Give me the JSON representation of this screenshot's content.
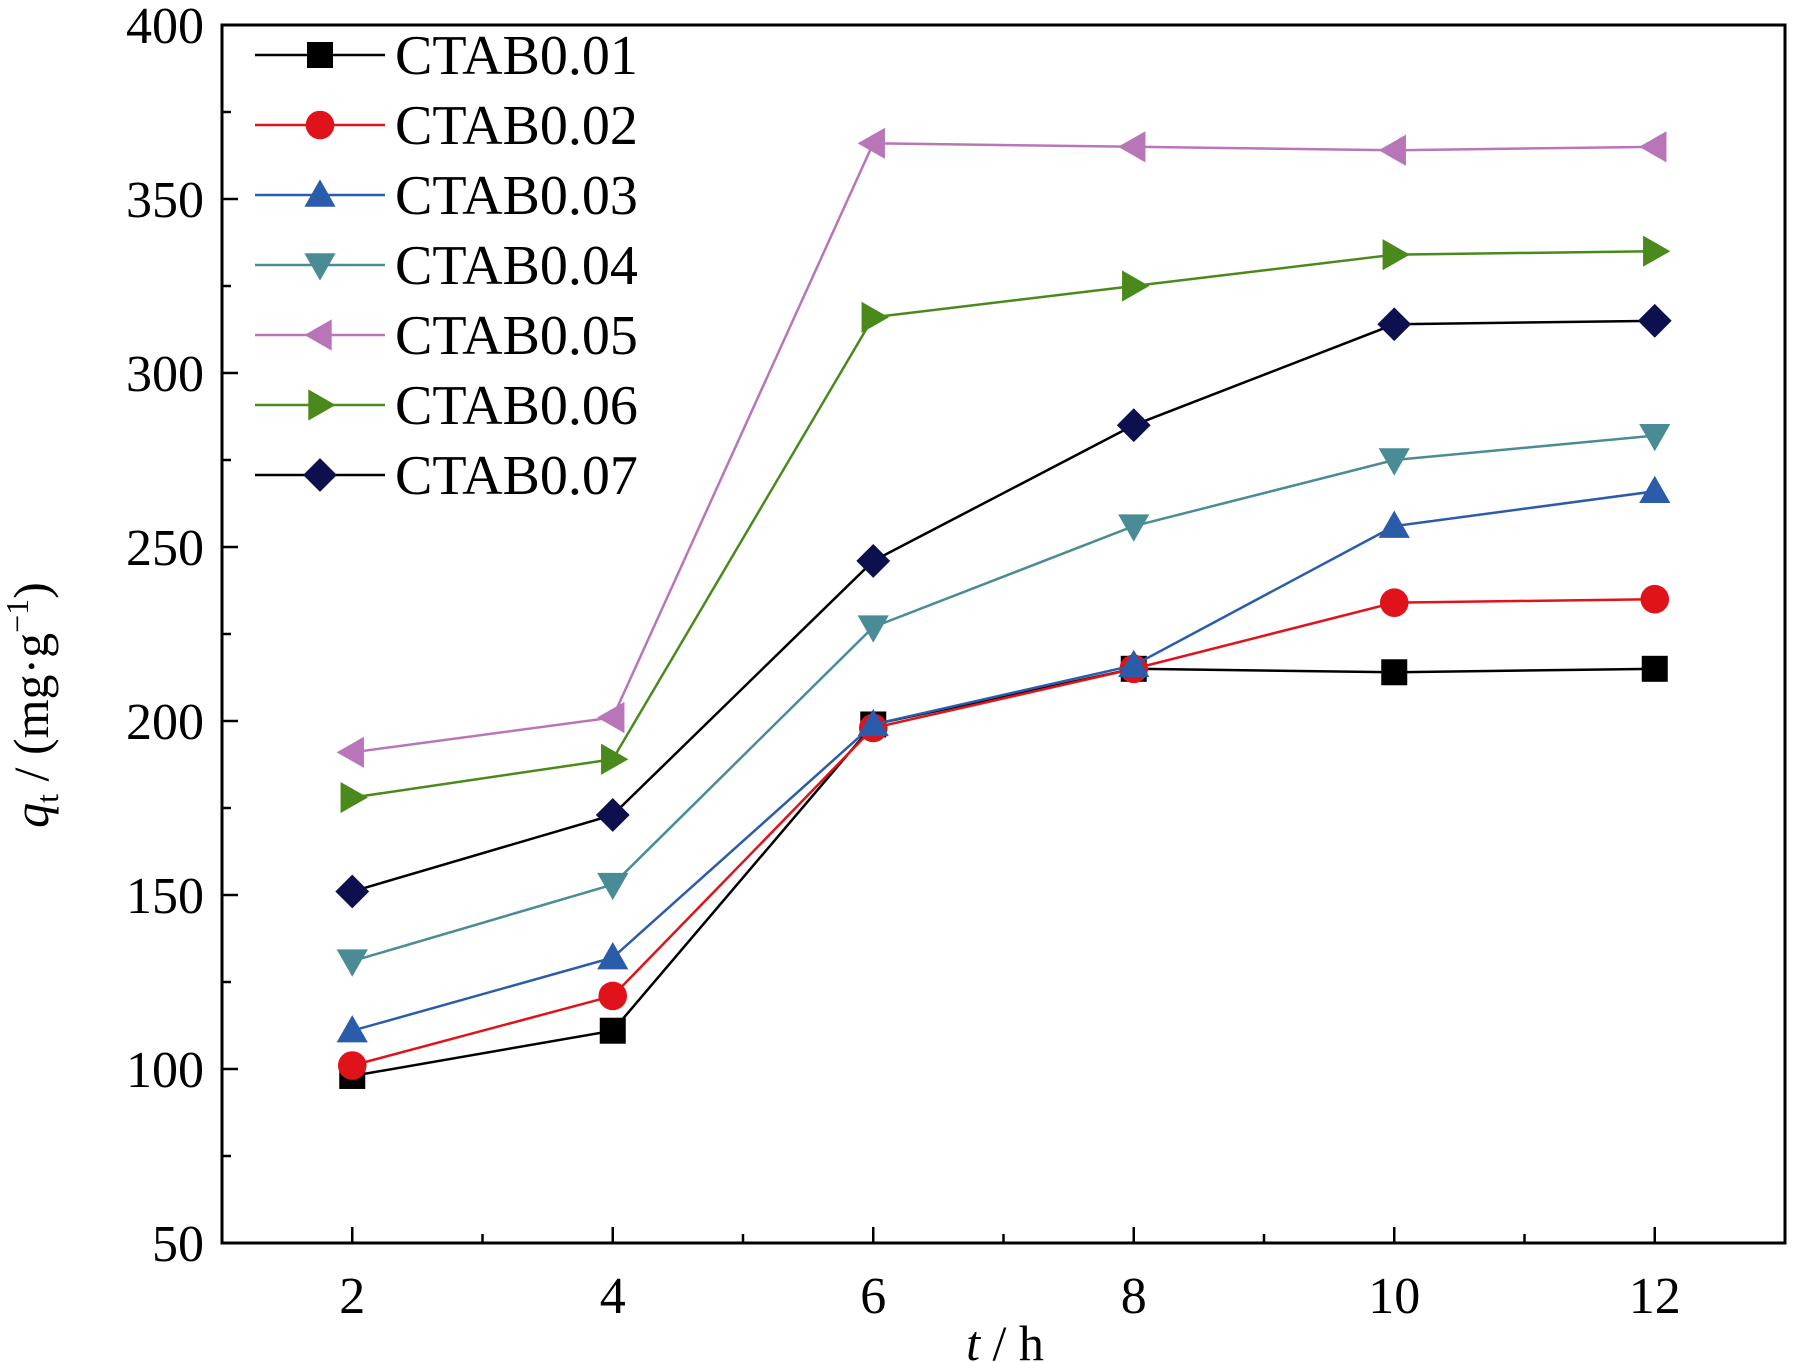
{
  "chart_data": {
    "type": "line",
    "x": [
      2,
      4,
      6,
      8,
      10,
      12
    ],
    "xlim": [
      1,
      13
    ],
    "ylim": [
      50,
      400
    ],
    "xticks": [
      2,
      4,
      6,
      8,
      10,
      12
    ],
    "yticks": [
      50,
      100,
      150,
      200,
      250,
      300,
      350,
      400
    ],
    "xlabel": {
      "var": "t",
      "unit": " / h"
    },
    "ylabel": {
      "var": "q",
      "sub": "t",
      "unit_pre": " / (mg·g",
      "sup": "−1",
      "unit_post": ")"
    },
    "legend_position": "top-left",
    "grid": false,
    "series": [
      {
        "name": "CTAB0.01",
        "color": "#000000",
        "line": "#000000",
        "marker": "square",
        "values": [
          98,
          111,
          199,
          215,
          214,
          215
        ]
      },
      {
        "name": "CTAB0.02",
        "color": "#e0131a",
        "line": "#e0131a",
        "marker": "circle",
        "values": [
          101,
          121,
          198,
          215,
          234,
          235
        ]
      },
      {
        "name": "CTAB0.03",
        "color": "#2a5caa",
        "line": "#2a5caa",
        "marker": "triangle-up",
        "values": [
          111,
          132,
          199,
          216,
          256,
          266
        ]
      },
      {
        "name": "CTAB0.04",
        "color": "#4a8c95",
        "line": "#4a8c95",
        "marker": "triangle-down",
        "values": [
          131,
          153,
          227,
          256,
          275,
          282
        ]
      },
      {
        "name": "CTAB0.05",
        "color": "#b875b8",
        "line": "#b875b8",
        "marker": "triangle-left",
        "values": [
          191,
          201,
          366,
          365,
          364,
          365
        ]
      },
      {
        "name": "CTAB0.06",
        "color": "#4a8a1c",
        "line": "#4a8a1c",
        "marker": "triangle-right",
        "values": [
          178,
          189,
          316,
          325,
          334,
          335
        ]
      },
      {
        "name": "CTAB0.07",
        "color": "#0d0f4e",
        "line": "#000000",
        "marker": "diamond",
        "values": [
          151,
          173,
          246,
          285,
          314,
          315
        ]
      }
    ]
  }
}
